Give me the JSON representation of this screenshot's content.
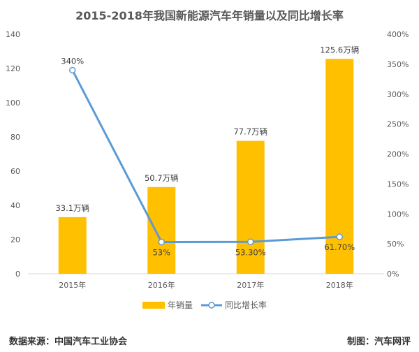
{
  "chart_data": {
    "type": "bar",
    "title": "2015-2018年我国新能源汽车年销量以及同比增长率",
    "categories": [
      "2015年",
      "2016年",
      "2017年",
      "2018年"
    ],
    "series": [
      {
        "name": "年销量",
        "type": "bar",
        "axis": "left",
        "values": [
          33.1,
          50.7,
          77.7,
          125.6
        ],
        "labels": [
          "33.1万辆",
          "50.7万辆",
          "77.7万辆",
          "125.6万辆"
        ],
        "color": "#FFC000"
      },
      {
        "name": "同比增长率",
        "type": "line",
        "axis": "right",
        "values": [
          340,
          53,
          53.3,
          61.7
        ],
        "labels": [
          "340%",
          "53%",
          "53.30%",
          "61.70%"
        ],
        "color": "#5B9BD5"
      }
    ],
    "y_left": {
      "min": 0,
      "max": 140,
      "step": 20,
      "ticks": [
        "0",
        "20",
        "40",
        "60",
        "80",
        "100",
        "120",
        "140"
      ]
    },
    "y_right": {
      "min": 0,
      "max": 400,
      "step": 50,
      "ticks": [
        "0%",
        "50%",
        "100%",
        "150%",
        "200%",
        "250%",
        "300%",
        "350%",
        "400%"
      ]
    },
    "grid": false,
    "legend": "bottom"
  },
  "footer": {
    "source": "数据来源：中国汽车工业协会",
    "credit": "制图：汽车网评"
  }
}
